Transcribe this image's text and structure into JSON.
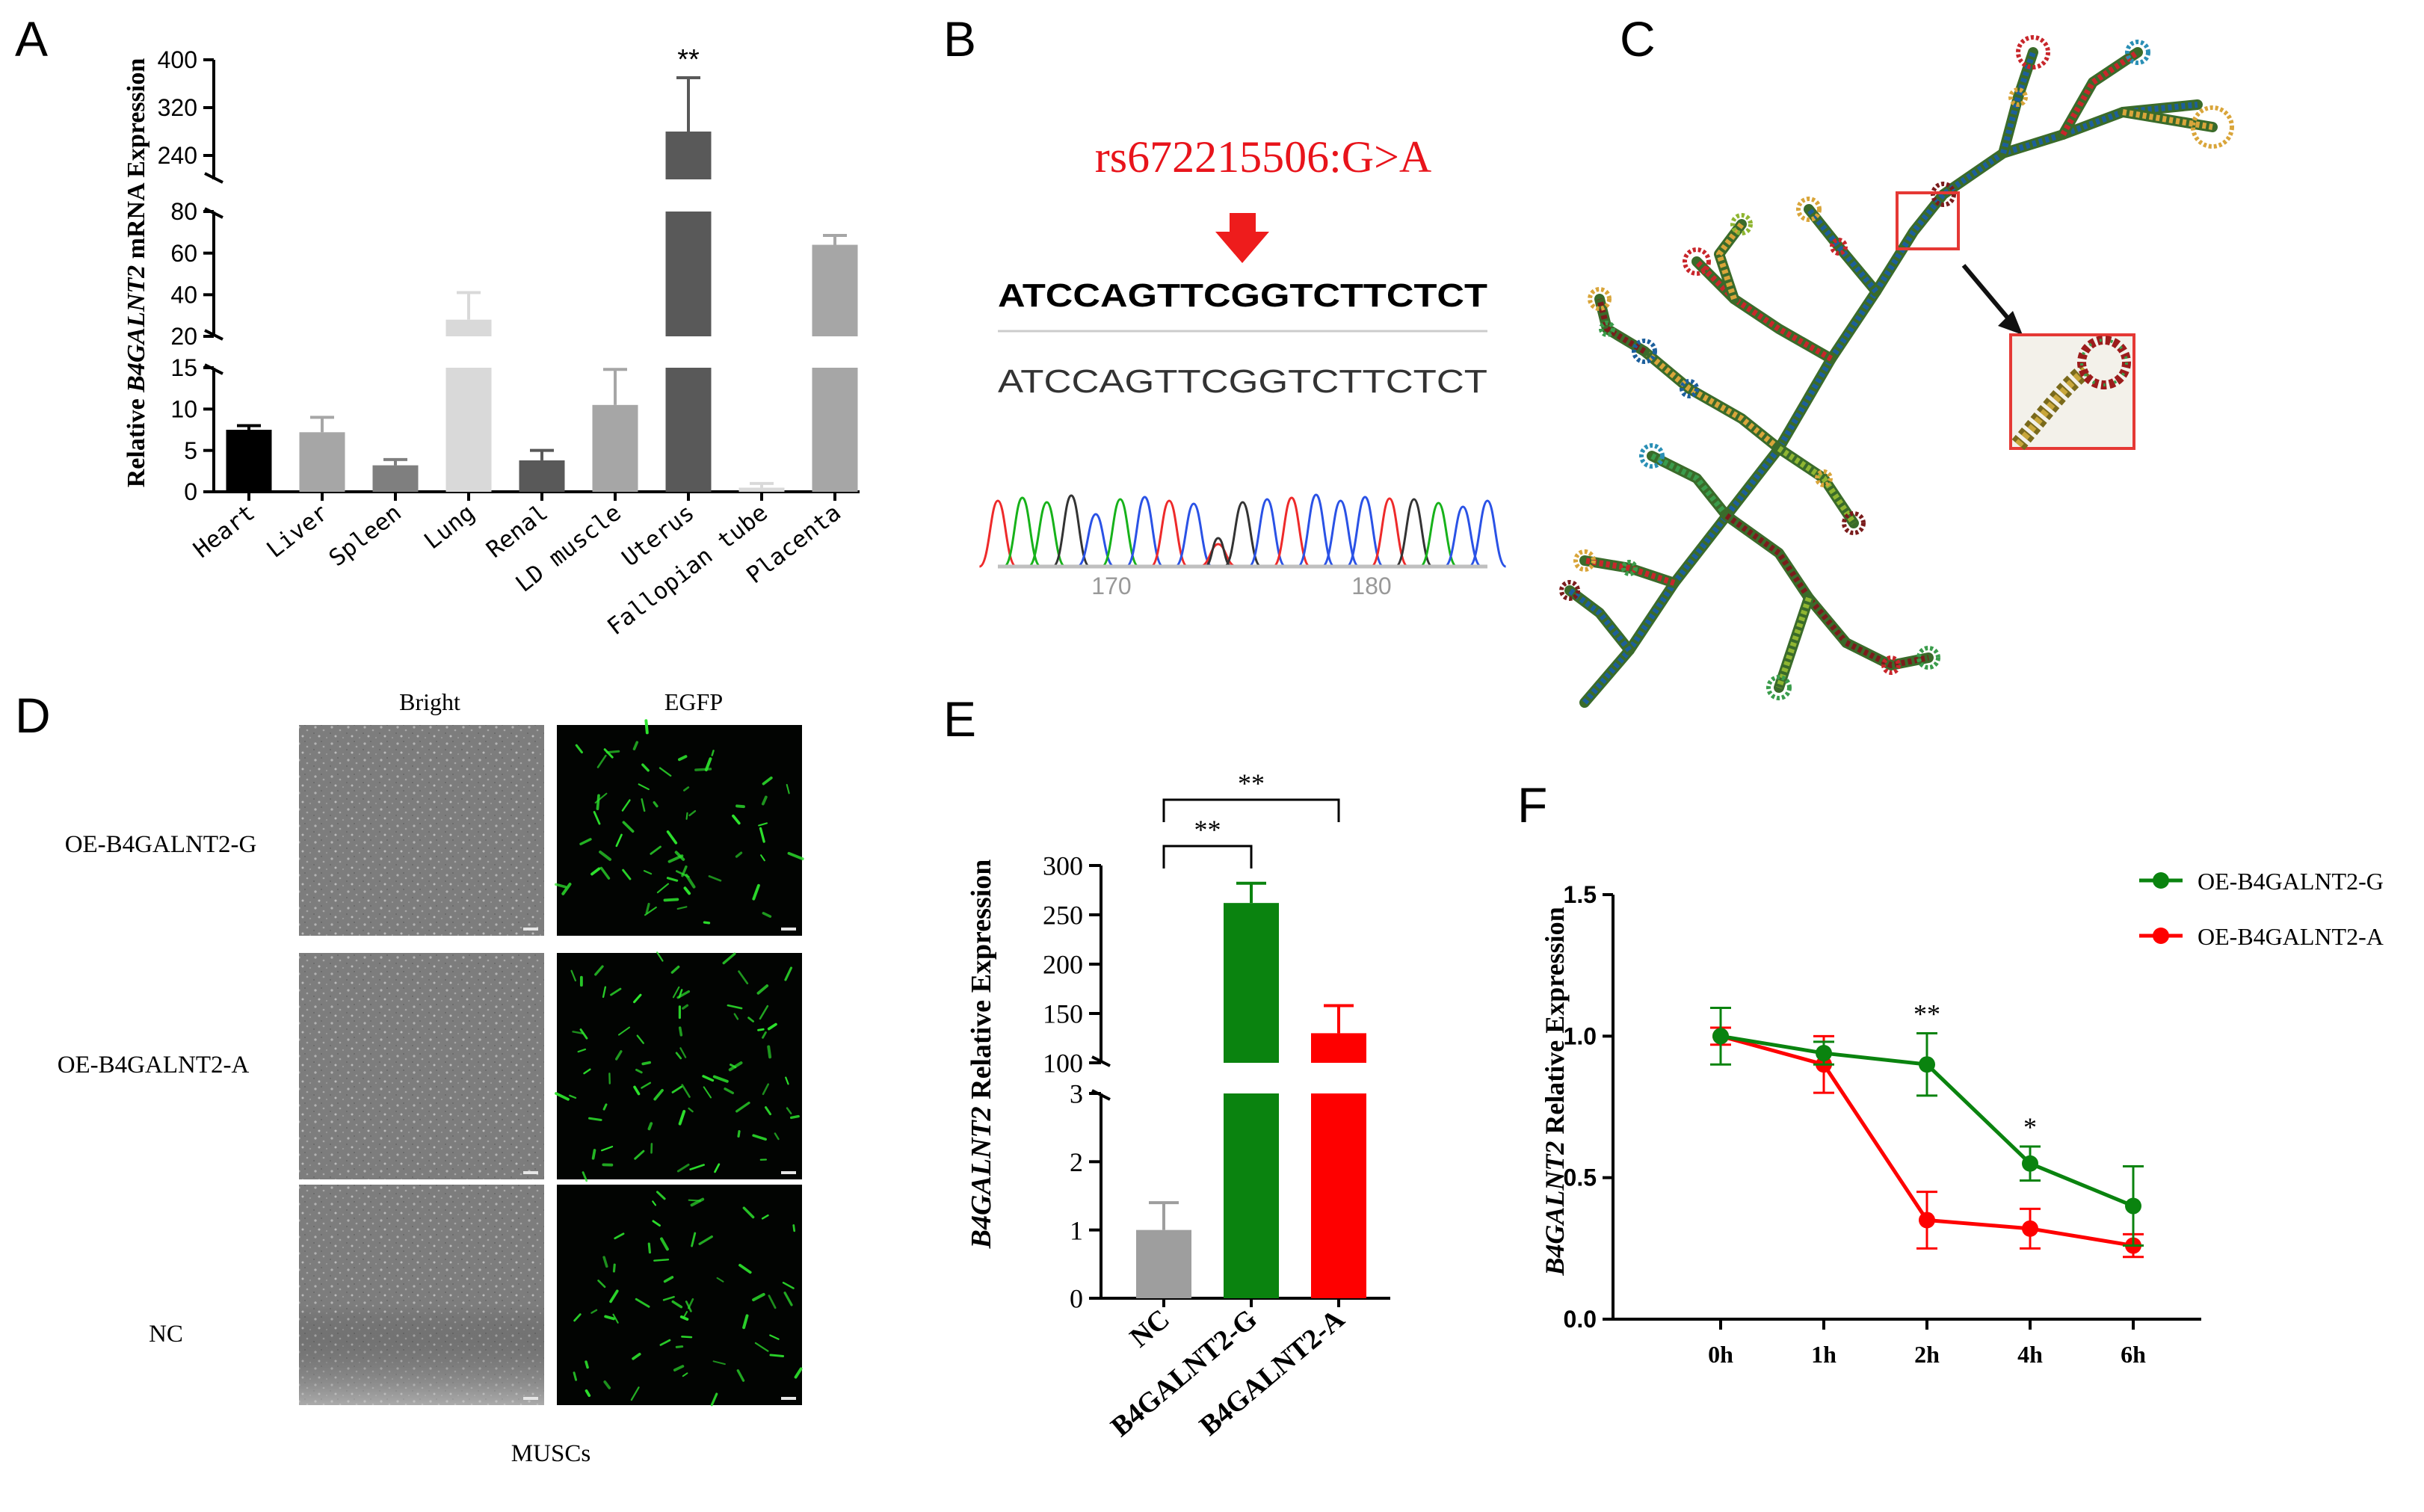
{
  "panels": {
    "A": "A",
    "B": "B",
    "C": "C",
    "D": "D",
    "E": "E",
    "F": "F"
  },
  "chart_data": [
    {
      "id": "A",
      "type": "bar",
      "ylabel_pre": "Relative ",
      "ylabel_gene": "B4GALNT2",
      "ylabel_post": " mRNA  Expression",
      "categories": [
        "Heart",
        "Liver",
        "Spleen",
        "Lung",
        "Renal",
        "LD muscle",
        "Uterus",
        "Fallopian tube",
        "Placenta"
      ],
      "values": [
        7.5,
        7.2,
        3.2,
        28,
        3.8,
        10.5,
        280,
        0.5,
        64
      ],
      "errors": [
        0.5,
        1.8,
        0.7,
        13,
        1.2,
        4.3,
        90,
        0.5,
        4.5
      ],
      "colors": [
        "#000000",
        "#a6a6a6",
        "#7f7f7f",
        "#d9d9d9",
        "#595959",
        "#a6a6a6",
        "#595959",
        "#d9d9d9",
        "#a6a6a6"
      ],
      "segments": [
        {
          "range": [
            0,
            15
          ],
          "ticks": [
            0,
            5,
            10,
            15
          ]
        },
        {
          "range": [
            20,
            80
          ],
          "ticks": [
            20,
            40,
            60,
            80
          ]
        },
        {
          "range": [
            200,
            400
          ],
          "ticks": [
            240,
            320,
            400
          ]
        }
      ],
      "annotations": [
        {
          "category": "Uterus",
          "text": "**"
        }
      ]
    },
    {
      "id": "E",
      "type": "bar",
      "ylabel_gene": "B4GALNT2",
      "ylabel_post": " Relative Expression",
      "categories": [
        "NC",
        "B4GALNT2-G",
        "B4GALNT2-A"
      ],
      "values": [
        1,
        262,
        130
      ],
      "errors": [
        0.4,
        20,
        28
      ],
      "colors": [
        "#9e9e9e",
        "#0a830f",
        "#fe0000"
      ],
      "segments": [
        {
          "range": [
            0,
            3
          ],
          "ticks": [
            0,
            1,
            2,
            3
          ]
        },
        {
          "range": [
            100,
            300
          ],
          "ticks": [
            100,
            150,
            200,
            250,
            300
          ]
        }
      ],
      "brackets": [
        {
          "from": "NC",
          "to": "B4GALNT2-G",
          "text": "**"
        },
        {
          "from": "NC",
          "to": "B4GALNT2-A",
          "text": "**"
        }
      ]
    },
    {
      "id": "F",
      "type": "line",
      "ylabel_gene": "B4GALNT2",
      "ylabel_post": " Relative Expression",
      "x": [
        "0h",
        "1h",
        "2h",
        "4h",
        "6h"
      ],
      "ylim": [
        0,
        1.5
      ],
      "yticks": [
        "0.0",
        "0.5",
        "1.0",
        "1.5"
      ],
      "series": [
        {
          "name": "OE-B4GALNT2-G",
          "color": "#0a830f",
          "values": [
            1.0,
            0.94,
            0.9,
            0.55,
            0.4
          ],
          "errors": [
            0.1,
            0.04,
            0.11,
            0.06,
            0.14
          ]
        },
        {
          "name": "OE-B4GALNT2-A",
          "color": "#fe0000",
          "values": [
            1.0,
            0.9,
            0.35,
            0.32,
            0.26
          ],
          "errors": [
            0.03,
            0.1,
            0.1,
            0.07,
            0.04
          ]
        }
      ],
      "annotations": [
        {
          "x": "2h",
          "text": "**"
        },
        {
          "x": "4h",
          "text": "*"
        }
      ]
    }
  ],
  "panelB": {
    "snp": "rs672215506:G>A",
    "reference_seq": "ATCCAGTTCGGTCTTCTCT",
    "sample_seq": "ATCCAGTTCGGTCTTCTCT",
    "positions": [
      "170",
      "180"
    ],
    "trace_colors": {
      "A": "#17b21a",
      "C": "#2a52e6",
      "G": "#333333",
      "T": "#ee2a2a"
    }
  },
  "panelC": {
    "structure_colors": [
      "#c8262b",
      "#7a1c1c",
      "#d9a53a",
      "#8fb531",
      "#3a9c4b",
      "#2a8fb5",
      "#1c5f9c"
    ],
    "inset_color": "#e53935"
  },
  "panelD": {
    "columns": [
      "Bright",
      "EGFP"
    ],
    "rows": [
      "OE-B4GALNT2-G",
      "OE-B4GALNT2-A",
      "NC"
    ],
    "caption": "MUSCs",
    "brightfield_color": "#8c8c8c",
    "fluorescence_color": "#2ee62e"
  }
}
